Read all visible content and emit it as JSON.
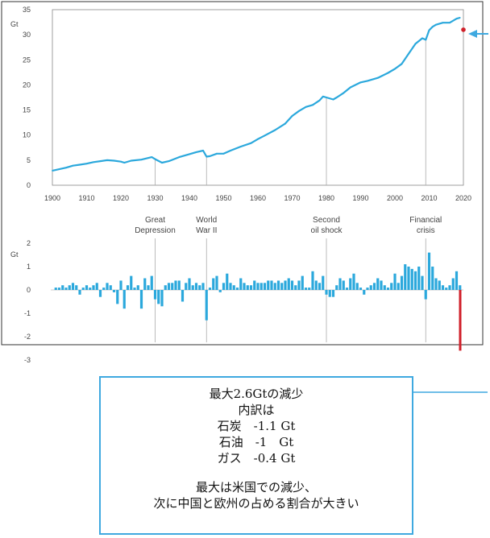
{
  "colors": {
    "series": "#2ba8dc",
    "highlight": "#d0202a",
    "frame": "#333333",
    "callout": "#3fa9e0"
  },
  "chart_data": [
    {
      "type": "line",
      "ylabel": "Gt",
      "ylim": [
        0,
        35
      ],
      "xlim": [
        1900,
        2020
      ],
      "yticks": [
        "0",
        "5",
        "10",
        "15",
        "20",
        "25",
        "30",
        "35"
      ],
      "xticks": [
        "1900",
        "1910",
        "1920",
        "1930",
        "1940",
        "1950",
        "1960",
        "1970",
        "1980",
        "1990",
        "2000",
        "2010",
        "2020"
      ],
      "grid": false,
      "series": [
        {
          "x": [
            1900,
            1902,
            1904,
            1906,
            1908,
            1910,
            1912,
            1914,
            1916,
            1918,
            1920,
            1921,
            1923,
            1926,
            1929,
            1930,
            1932,
            1934,
            1937,
            1940,
            1942,
            1944,
            1945,
            1946,
            1948,
            1950,
            1952,
            1955,
            1958,
            1960,
            1962,
            1965,
            1968,
            1970,
            1972,
            1974,
            1976,
            1978,
            1979,
            1980,
            1982,
            1983,
            1985,
            1987,
            1990,
            1992,
            1995,
            1998,
            2000,
            2002,
            2004,
            2006,
            2008,
            2009,
            2010,
            2011,
            2012,
            2014,
            2016,
            2018,
            2019
          ],
          "y": [
            2.9,
            3.2,
            3.5,
            3.9,
            4.1,
            4.3,
            4.6,
            4.8,
            5.0,
            4.9,
            4.7,
            4.5,
            4.9,
            5.1,
            5.6,
            5.2,
            4.5,
            4.8,
            5.6,
            6.2,
            6.6,
            6.9,
            5.7,
            5.8,
            6.3,
            6.3,
            6.9,
            7.7,
            8.4,
            9.2,
            9.9,
            11.0,
            12.3,
            13.8,
            14.8,
            15.6,
            16.0,
            16.9,
            17.7,
            17.5,
            17.1,
            17.5,
            18.4,
            19.5,
            20.5,
            20.8,
            21.4,
            22.4,
            23.2,
            24.2,
            26.2,
            28.2,
            29.3,
            29.0,
            30.9,
            31.6,
            32.0,
            32.4,
            32.4,
            33.2,
            33.4
          ]
        }
      ],
      "highlight_point": {
        "x": 2020,
        "y": 31.0
      }
    },
    {
      "type": "bar",
      "ylabel": "Gt",
      "ylim": [
        -3,
        2
      ],
      "yticks": [
        "2",
        "1",
        "0",
        "-1",
        "-2",
        "-3"
      ],
      "annotations": [
        {
          "x": 1930,
          "label": "Great\nDepression"
        },
        {
          "x": 1945,
          "label": "World\nWar II"
        },
        {
          "x": 1980,
          "label": "Second\noil shock"
        },
        {
          "x": 2009,
          "label": "Financial\ncrisis"
        }
      ],
      "series": [
        {
          "x": [
            1901,
            1902,
            1903,
            1904,
            1905,
            1906,
            1907,
            1908,
            1909,
            1910,
            1911,
            1912,
            1913,
            1914,
            1915,
            1916,
            1917,
            1918,
            1919,
            1920,
            1921,
            1922,
            1923,
            1924,
            1925,
            1926,
            1927,
            1928,
            1929,
            1930,
            1931,
            1932,
            1933,
            1934,
            1935,
            1936,
            1937,
            1938,
            1939,
            1940,
            1941,
            1942,
            1943,
            1944,
            1945,
            1946,
            1947,
            1948,
            1949,
            1950,
            1951,
            1952,
            1953,
            1954,
            1955,
            1956,
            1957,
            1958,
            1959,
            1960,
            1961,
            1962,
            1963,
            1964,
            1965,
            1966,
            1967,
            1968,
            1969,
            1970,
            1971,
            1972,
            1973,
            1974,
            1975,
            1976,
            1977,
            1978,
            1979,
            1980,
            1981,
            1982,
            1983,
            1984,
            1985,
            1986,
            1987,
            1988,
            1989,
            1990,
            1991,
            1992,
            1993,
            1994,
            1995,
            1996,
            1997,
            1998,
            1999,
            2000,
            2001,
            2002,
            2003,
            2004,
            2005,
            2006,
            2007,
            2008,
            2009,
            2010,
            2011,
            2012,
            2013,
            2014,
            2015,
            2016,
            2017,
            2018,
            2019
          ],
          "values": [
            0.1,
            0.1,
            0.2,
            0.1,
            0.2,
            0.3,
            0.2,
            -0.2,
            0.1,
            0.2,
            0.1,
            0.2,
            0.3,
            -0.3,
            0.1,
            0.3,
            0.2,
            -0.1,
            -0.6,
            0.4,
            -0.8,
            0.2,
            0.6,
            0.1,
            0.2,
            -0.8,
            0.5,
            0.2,
            0.6,
            -0.4,
            -0.6,
            -0.7,
            0.2,
            0.3,
            0.3,
            0.4,
            0.4,
            -0.5,
            0.3,
            0.5,
            0.2,
            0.3,
            0.2,
            0.3,
            -1.3,
            0.1,
            0.5,
            0.6,
            -0.1,
            0.3,
            0.7,
            0.3,
            0.2,
            0.1,
            0.5,
            0.3,
            0.2,
            0.2,
            0.4,
            0.3,
            0.3,
            0.3,
            0.4,
            0.4,
            0.3,
            0.4,
            0.3,
            0.4,
            0.5,
            0.4,
            0.2,
            0.4,
            0.6,
            0.1,
            0.1,
            0.8,
            0.4,
            0.3,
            0.6,
            -0.2,
            -0.3,
            -0.3,
            0.2,
            0.5,
            0.4,
            0.1,
            0.5,
            0.7,
            0.3,
            0.1,
            -0.2,
            0.1,
            0.2,
            0.3,
            0.5,
            0.4,
            0.2,
            0.1,
            0.3,
            0.7,
            0.3,
            0.6,
            1.1,
            1.0,
            0.9,
            0.8,
            1.0,
            0.6,
            -0.4,
            1.6,
            1.0,
            0.5,
            0.4,
            0.2,
            0.1,
            0.2,
            0.5,
            0.8,
            0.2
          ]
        }
      ],
      "highlight_bar": {
        "x": 2020,
        "value": -2.6
      }
    }
  ],
  "note": {
    "lines_top": [
      "最大2.6Gtの減少",
      "内訳は",
      "石炭　-1.1 Gt",
      "石油　-1　Gt",
      "ガス　-0.4 Gt"
    ],
    "lines_bottom": [
      "最大は米国での減少、",
      "次に中国と欧州の占める割合が大きい"
    ]
  }
}
